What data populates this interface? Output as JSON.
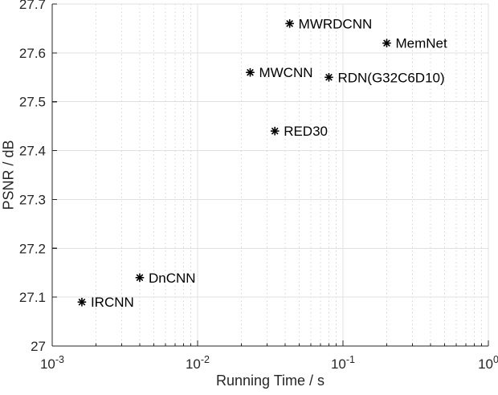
{
  "colors": {
    "background": "#ffffff",
    "axis": "#262626",
    "tick_label": "#262626",
    "grid_major": "#e0e0e0",
    "grid_minor": "#d4d4d4",
    "marker": "#000000",
    "point_label": "#000000"
  },
  "chart_data": {
    "type": "scatter",
    "xlabel": "Running Time / s",
    "ylabel": "PSNR / dB",
    "x_scale": "log",
    "y_scale": "linear",
    "xlim": [
      0.001,
      1
    ],
    "ylim": [
      27.0,
      27.7
    ],
    "grid": true,
    "minor_grid_x": true,
    "legend": "none",
    "marker": "asterisk",
    "x_ticks": [
      {
        "value": 0.001,
        "mantissa": "10",
        "exponent": "-3"
      },
      {
        "value": 0.01,
        "mantissa": "10",
        "exponent": "-2"
      },
      {
        "value": 0.1,
        "mantissa": "10",
        "exponent": "-1"
      },
      {
        "value": 1,
        "mantissa": "10",
        "exponent": "0"
      }
    ],
    "y_ticks": [
      {
        "value": 27.0,
        "label": "27"
      },
      {
        "value": 27.1,
        "label": "27.1"
      },
      {
        "value": 27.2,
        "label": "27.2"
      },
      {
        "value": 27.3,
        "label": "27.3"
      },
      {
        "value": 27.4,
        "label": "27.4"
      },
      {
        "value": 27.5,
        "label": "27.5"
      },
      {
        "value": 27.6,
        "label": "27.6"
      },
      {
        "value": 27.7,
        "label": "27.7"
      }
    ],
    "series": [
      {
        "name": "MWRDCNN",
        "x": 0.043,
        "y": 27.66
      },
      {
        "name": "MemNet",
        "x": 0.2,
        "y": 27.62
      },
      {
        "name": "MWCNN",
        "x": 0.023,
        "y": 27.56
      },
      {
        "name": "RDN(G32C6D10)",
        "x": 0.08,
        "y": 27.55
      },
      {
        "name": "RED30",
        "x": 0.034,
        "y": 27.44
      },
      {
        "name": "DnCNN",
        "x": 0.004,
        "y": 27.14
      },
      {
        "name": "IRCNN",
        "x": 0.0016,
        "y": 27.09
      }
    ]
  }
}
